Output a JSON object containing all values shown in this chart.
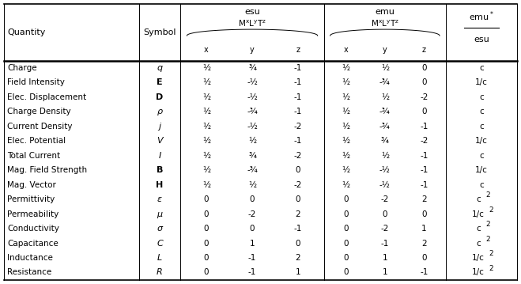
{
  "rows": [
    [
      "Charge",
      "q",
      "½",
      "¾",
      "-1",
      "½",
      "½",
      "0",
      "c"
    ],
    [
      "Field Intensity",
      "E",
      "½",
      "-½",
      "-1",
      "½",
      "-¾",
      "0",
      "1/c"
    ],
    [
      "Elec. Displacement",
      "D",
      "½",
      "-½",
      "-1",
      "½",
      "½",
      "-2",
      "c"
    ],
    [
      "Charge Density",
      "ρ",
      "½",
      "-¾",
      "-1",
      "½",
      "-¾",
      "0",
      "c"
    ],
    [
      "Current Density",
      "j",
      "½",
      "-½",
      "-2",
      "½",
      "-¾",
      "-1",
      "c"
    ],
    [
      "Elec. Potential",
      "V",
      "½",
      "½",
      "-1",
      "½",
      "¾",
      "-2",
      "1/c"
    ],
    [
      "Total Current",
      "I",
      "½",
      "¾",
      "-2",
      "½",
      "½",
      "-1",
      "c"
    ],
    [
      "Mag. Field Strength",
      "B",
      "½",
      "-¾",
      "0",
      "½",
      "-½",
      "-1",
      "1/c"
    ],
    [
      "Mag. Vector",
      "H",
      "½",
      "½",
      "-2",
      "½",
      "-½",
      "-1",
      "c"
    ],
    [
      "Permittivity",
      "ε",
      "0",
      "0",
      "0",
      "0",
      "-2",
      "2",
      "c2"
    ],
    [
      "Permeability",
      "μ",
      "0",
      "-2",
      "2",
      "0",
      "0",
      "0",
      "1/c2"
    ],
    [
      "Conductivity",
      "σ",
      "0",
      "0",
      "-1",
      "0",
      "-2",
      "1",
      "c2"
    ],
    [
      "Capacitance",
      "C",
      "0",
      "1",
      "0",
      "0",
      "-1",
      "2",
      "c2"
    ],
    [
      "Inductance",
      "L",
      "0",
      "-1",
      "2",
      "0",
      "1",
      "0",
      "1/c2"
    ],
    [
      "Resistance",
      "R",
      "0",
      "-1",
      "1",
      "0",
      "1",
      "-1",
      "1/c2"
    ]
  ],
  "bold_symbols": [
    "E",
    "D",
    "B",
    "H"
  ],
  "bg_color": "#ffffff",
  "text_color": "#000000",
  "font_size": 7.5,
  "header_font_size": 8.0,
  "small_font_size": 6.5
}
